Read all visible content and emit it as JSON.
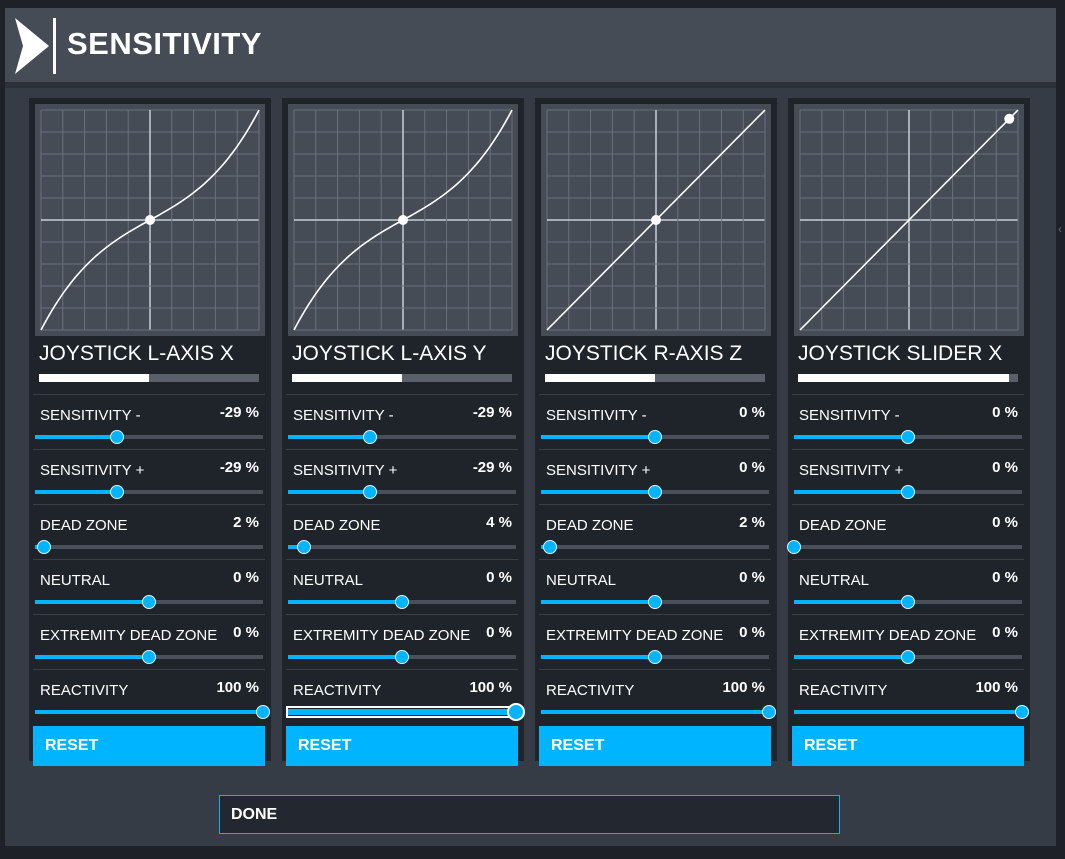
{
  "header": {
    "title": "SENSITIVITY",
    "logo_icon": "chevron-right-icon"
  },
  "colors": {
    "accent": "#00b4ff",
    "panel": "#1f242b",
    "graph_bg": "#454c56"
  },
  "panels": [
    {
      "axis_name": "JOYSTICK L-AXIS X",
      "input_level": 0.5,
      "curve": "s-curve",
      "rows": [
        {
          "label": "SENSITIVITY -",
          "value": "-29 %",
          "level": 0.36
        },
        {
          "label": "SENSITIVITY +",
          "value": "-29 %",
          "level": 0.36
        },
        {
          "label": "DEAD ZONE",
          "value": "2 %",
          "level": 0.04
        },
        {
          "label": "NEUTRAL",
          "value": "0 %",
          "level": 0.5
        },
        {
          "label": "EXTREMITY DEAD ZONE",
          "value": "0 %",
          "level": 0.5
        },
        {
          "label": "REACTIVITY",
          "value": "100 %",
          "level": 1.0
        }
      ],
      "reset_label": "RESET"
    },
    {
      "axis_name": "JOYSTICK L-AXIS Y",
      "input_level": 0.5,
      "curve": "s-curve",
      "rows": [
        {
          "label": "SENSITIVITY -",
          "value": "-29 %",
          "level": 0.36
        },
        {
          "label": "SENSITIVITY +",
          "value": "-29 %",
          "level": 0.36
        },
        {
          "label": "DEAD ZONE",
          "value": "4 %",
          "level": 0.07
        },
        {
          "label": "NEUTRAL",
          "value": "0 %",
          "level": 0.5
        },
        {
          "label": "EXTREMITY DEAD ZONE",
          "value": "0 %",
          "level": 0.5
        },
        {
          "label": "REACTIVITY",
          "value": "100 %",
          "level": 1.0,
          "focused": true
        }
      ],
      "reset_label": "RESET"
    },
    {
      "axis_name": "JOYSTICK R-AXIS Z",
      "input_level": 0.5,
      "curve": "linear",
      "rows": [
        {
          "label": "SENSITIVITY -",
          "value": "0 %",
          "level": 0.5
        },
        {
          "label": "SENSITIVITY +",
          "value": "0 %",
          "level": 0.5
        },
        {
          "label": "DEAD ZONE",
          "value": "2 %",
          "level": 0.04
        },
        {
          "label": "NEUTRAL",
          "value": "0 %",
          "level": 0.5
        },
        {
          "label": "EXTREMITY DEAD ZONE",
          "value": "0 %",
          "level": 0.5
        },
        {
          "label": "REACTIVITY",
          "value": "100 %",
          "level": 1.0
        }
      ],
      "reset_label": "RESET"
    },
    {
      "axis_name": "JOYSTICK SLIDER X",
      "input_level": 0.96,
      "curve": "linear",
      "rows": [
        {
          "label": "SENSITIVITY -",
          "value": "0 %",
          "level": 0.5
        },
        {
          "label": "SENSITIVITY +",
          "value": "0 %",
          "level": 0.5
        },
        {
          "label": "DEAD ZONE",
          "value": "0 %",
          "level": 0.0
        },
        {
          "label": "NEUTRAL",
          "value": "0 %",
          "level": 0.5
        },
        {
          "label": "EXTREMITY DEAD ZONE",
          "value": "0 %",
          "level": 0.5
        },
        {
          "label": "REACTIVITY",
          "value": "100 %",
          "level": 1.0
        }
      ],
      "reset_label": "RESET"
    }
  ],
  "done_label": "DONE"
}
